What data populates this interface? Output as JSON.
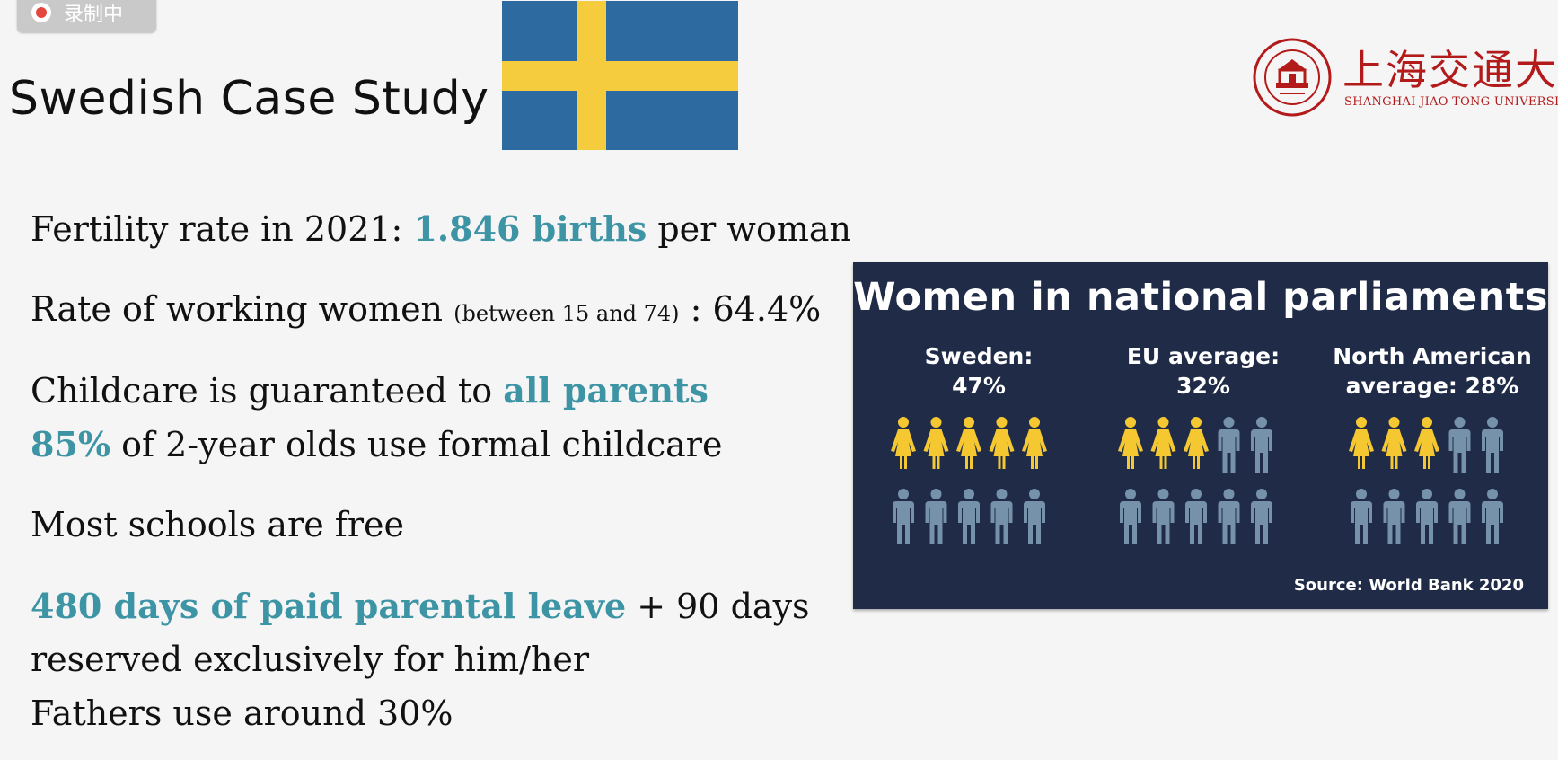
{
  "recording": {
    "label": "录制中"
  },
  "title": "Swedish Case Study",
  "logo": {
    "cn": "上海交通大学",
    "en": "SHANGHAI JIAO TONG UNIVERSITY"
  },
  "lines": {
    "fertility": {
      "pre": "Fertility rate in 2021: ",
      "accent": "1.846 births",
      "post": " per woman"
    },
    "working": {
      "pre": "Rate of working women ",
      "small": "(between 15 and 74)",
      "post": " : 64.4%"
    },
    "childcare": {
      "pre": "Childcare is guaranteed to ",
      "accent": "all parents"
    },
    "formal": {
      "accent": "85%",
      "post": " of 2-year olds use formal childcare"
    },
    "schools": "Most schools are free",
    "leave": {
      "accent": "480 days of paid parental leave",
      "post": " +  90 days"
    },
    "reserved": "reserved exclusively for him/her",
    "fathers": "Fathers use around 30%"
  },
  "infographic": {
    "title": "Women in national parliaments",
    "groups": [
      {
        "line1": "Sweden:",
        "line2": "47%",
        "value": 47,
        "filled": 5
      },
      {
        "line1": "EU average:",
        "line2": "32%",
        "value": 32,
        "filled": 3
      },
      {
        "line1": "North American",
        "line2": "average: 28%",
        "value": 28,
        "filled": 3
      }
    ],
    "source": "Source: World Bank 2020",
    "colors": {
      "background": "#1f2b47",
      "woman": "#f5c832",
      "man": "#7692aa"
    }
  },
  "colors": {
    "accent": "#3d94a4",
    "flag_blue": "#2c6aa0",
    "flag_yellow": "#f4cc3d",
    "logo_red": "#b31b1b"
  }
}
